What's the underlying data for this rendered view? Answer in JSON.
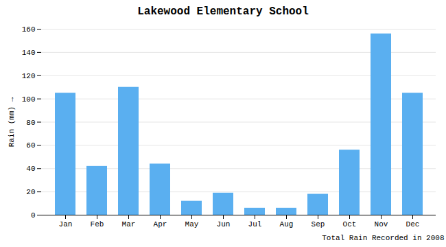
{
  "chart_data": {
    "type": "bar",
    "title": "Lakewood Elementary School",
    "xlabel": "Total Rain Recorded in 2008",
    "ylabel": "Rain (mm)",
    "categories": [
      "Jan",
      "Feb",
      "Mar",
      "Apr",
      "May",
      "Jun",
      "Jul",
      "Aug",
      "Sep",
      "Oct",
      "Nov",
      "Dec"
    ],
    "values": [
      105,
      42,
      110,
      44,
      12,
      19,
      6,
      6,
      18,
      56,
      156,
      105
    ],
    "color": "#5aaff0",
    "ylim": [
      0,
      160
    ],
    "yticks": [
      0,
      20,
      40,
      60,
      80,
      100,
      120,
      140,
      160
    ],
    "grid": true
  }
}
